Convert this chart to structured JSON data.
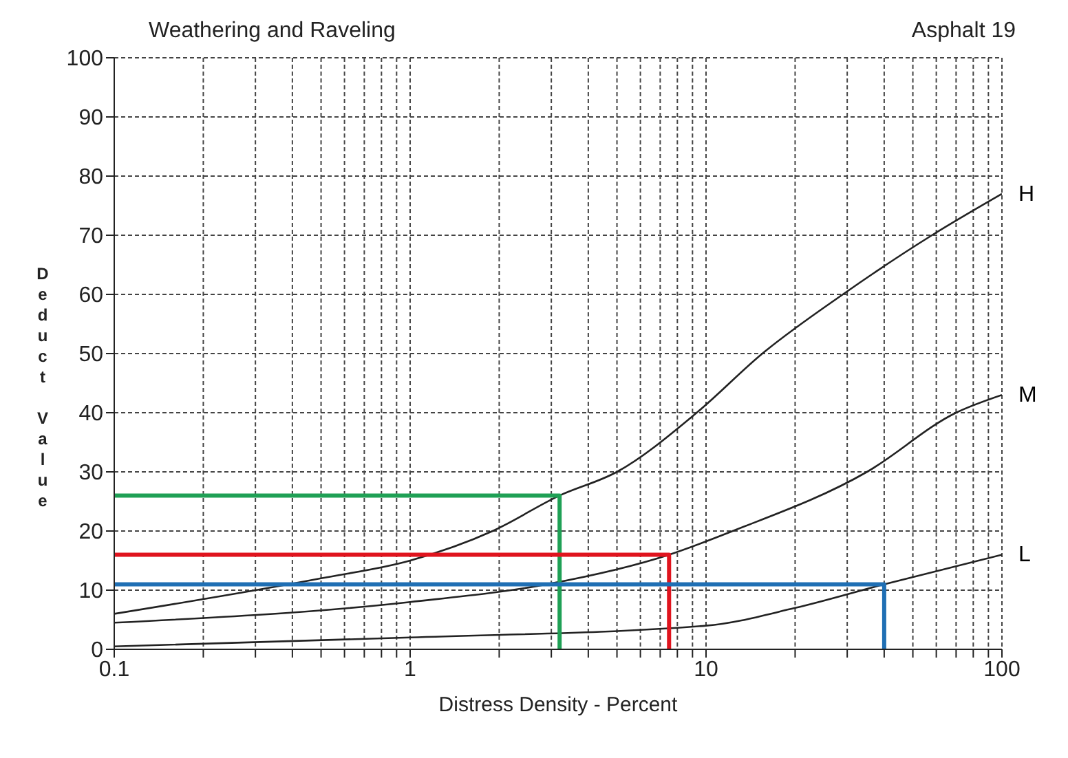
{
  "chart_data": {
    "type": "line",
    "title": "Weathering and Raveling",
    "subtitle": "Asphalt 19",
    "xlabel": "Distress Density - Percent",
    "ylabel": "Deduct Value",
    "log": "x",
    "xlim": [
      0.1,
      100
    ],
    "ylim": [
      0,
      100
    ],
    "xticks": [
      0.1,
      {
        "value": 0.2,
        "label": null
      },
      {
        "value": 0.3,
        "label": null
      },
      {
        "value": 0.4,
        "label": null
      },
      {
        "value": 0.5,
        "label": null
      },
      {
        "value": 0.6,
        "label": null
      },
      {
        "value": 0.7,
        "label": null
      },
      {
        "value": 0.8,
        "label": null
      },
      {
        "value": 0.9,
        "label": null
      },
      1,
      {
        "value": 2,
        "label": null
      },
      {
        "value": 3,
        "label": null
      },
      {
        "value": 4,
        "label": null
      },
      {
        "value": 5,
        "label": null
      },
      {
        "value": 6,
        "label": null
      },
      {
        "value": 7,
        "label": null
      },
      {
        "value": 8,
        "label": null
      },
      {
        "value": 9,
        "label": null
      },
      10,
      {
        "value": 20,
        "label": null
      },
      {
        "value": 30,
        "label": null
      },
      {
        "value": 40,
        "label": null
      },
      {
        "value": 50,
        "label": null
      },
      {
        "value": 60,
        "label": null
      },
      {
        "value": 70,
        "label": null
      },
      {
        "value": 80,
        "label": null
      },
      {
        "value": 90,
        "label": null
      },
      100
    ],
    "yticks": [
      0,
      10,
      20,
      30,
      40,
      50,
      60,
      70,
      80,
      90,
      100
    ],
    "grid": true,
    "marker": "none",
    "line_style": "solid",
    "series": [
      {
        "name": "H",
        "color": "#222222",
        "x": [
          0.1,
          0.5,
          1,
          1.9,
          3.2,
          5,
          9.3,
          15.5,
          29,
          58,
          100
        ],
        "values": [
          6,
          12,
          15,
          20,
          26,
          30,
          40,
          50,
          60,
          70,
          77
        ]
      },
      {
        "name": "M",
        "color": "#222222",
        "x": [
          0.1,
          1,
          2.9,
          7.5,
          12.3,
          35,
          70,
          100
        ],
        "values": [
          4.5,
          8,
          11,
          16,
          20,
          30,
          40,
          43
        ]
      },
      {
        "name": "L",
        "color": "#222222",
        "x": [
          0.1,
          1,
          10,
          20,
          40,
          100
        ],
        "values": [
          0.5,
          2,
          4,
          7,
          11,
          16
        ]
      },
      {
        "color": "#1fa055",
        "x": [
          0.1,
          3.2,
          3.2
        ],
        "values": [
          26,
          26,
          0
        ]
      },
      {
        "color": "#e0141e",
        "x": [
          0.1,
          7.5,
          7.5
        ],
        "values": [
          16,
          16,
          0
        ]
      },
      {
        "color": "#1f6fb4",
        "x": [
          0.1,
          40,
          40
        ],
        "values": [
          11,
          11,
          0
        ]
      }
    ]
  }
}
